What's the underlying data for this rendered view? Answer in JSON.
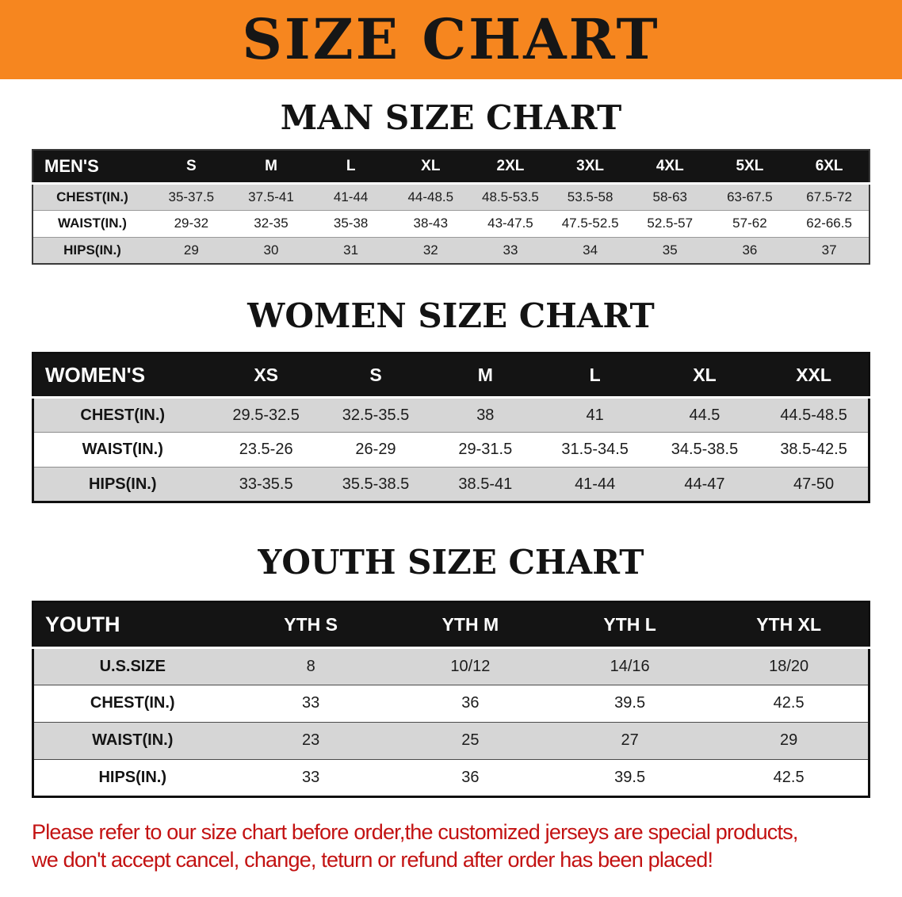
{
  "banner": {
    "title": "SIZE CHART"
  },
  "colors": {
    "banner_bg": "#f6861f",
    "table_header_bg": "#141414",
    "row_stripe_gray": "#d6d6d6",
    "disclaimer_red": "#c31212"
  },
  "men": {
    "heading": "MAN SIZE CHART",
    "table": {
      "header": [
        "MEN'S",
        "S",
        "M",
        "L",
        "XL",
        "2XL",
        "3XL",
        "4XL",
        "5XL",
        "6XL"
      ],
      "rows": [
        [
          "CHEST(IN.)",
          "35-37.5",
          "37.5-41",
          "41-44",
          "44-48.5",
          "48.5-53.5",
          "53.5-58",
          "58-63",
          "63-67.5",
          "67.5-72"
        ],
        [
          "WAIST(IN.)",
          "29-32",
          "32-35",
          "35-38",
          "38-43",
          "43-47.5",
          "47.5-52.5",
          "52.5-57",
          "57-62",
          "62-66.5"
        ],
        [
          "HIPS(IN.)",
          "29",
          "30",
          "31",
          "32",
          "33",
          "34",
          "35",
          "36",
          "37"
        ]
      ]
    }
  },
  "women": {
    "heading": "WOMEN SIZE CHART",
    "table": {
      "header": [
        "WOMEN'S",
        "XS",
        "S",
        "M",
        "L",
        "XL",
        "XXL"
      ],
      "rows": [
        [
          "CHEST(IN.)",
          "29.5-32.5",
          "32.5-35.5",
          "38",
          "41",
          "44.5",
          "44.5-48.5"
        ],
        [
          "WAIST(IN.)",
          "23.5-26",
          "26-29",
          "29-31.5",
          "31.5-34.5",
          "34.5-38.5",
          "38.5-42.5"
        ],
        [
          "HIPS(IN.)",
          "33-35.5",
          "35.5-38.5",
          "38.5-41",
          "41-44",
          "44-47",
          "47-50"
        ]
      ]
    }
  },
  "youth": {
    "heading": "YOUTH SIZE CHART",
    "table": {
      "header": [
        "YOUTH",
        "YTH S",
        "YTH M",
        "YTH L",
        "YTH XL"
      ],
      "rows": [
        [
          "U.S.SIZE",
          "8",
          "10/12",
          "14/16",
          "18/20"
        ],
        [
          "CHEST(IN.)",
          "33",
          "36",
          "39.5",
          "42.5"
        ],
        [
          "WAIST(IN.)",
          "23",
          "25",
          "27",
          "29"
        ],
        [
          "HIPS(IN.)",
          "33",
          "36",
          "39.5",
          "42.5"
        ]
      ]
    }
  },
  "disclaimer": {
    "line1": "Please refer to our size chart before order,the customized jerseys are special products,",
    "line2": "we don't accept cancel, change, teturn or refund after order has been placed!"
  }
}
